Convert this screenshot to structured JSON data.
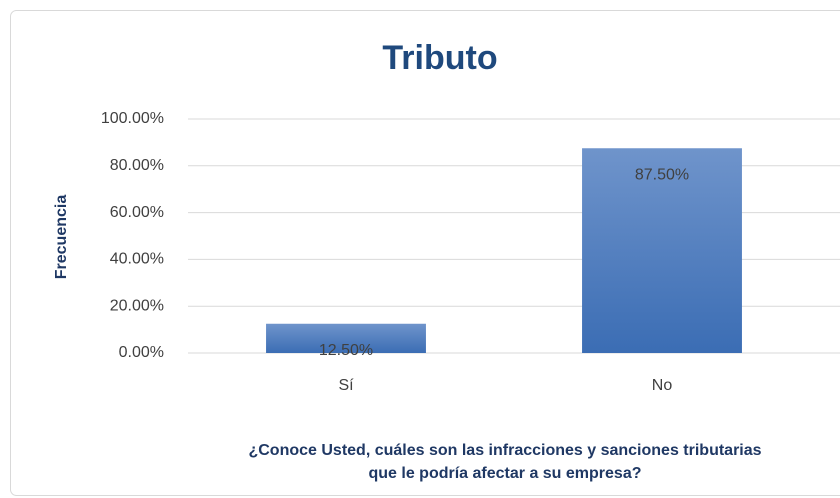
{
  "chart_data": {
    "type": "bar",
    "title": "Tributo",
    "ylabel": "Frecuencia",
    "xlabel": [
      "¿Conoce Usted, cuáles son las infracciones y sanciones tributarias",
      "que le podría afectar a su empresa?"
    ],
    "categories": [
      "Sí",
      "No"
    ],
    "values": [
      12.5,
      87.5
    ],
    "value_labels": [
      "12.50%",
      "87.50%"
    ],
    "color": "#4f7fc0",
    "ylim": [
      0,
      100
    ],
    "yticks": [
      {
        "value": 0,
        "label": "0.00%"
      },
      {
        "value": 20,
        "label": "20.00%"
      },
      {
        "value": 40,
        "label": "40.00%"
      },
      {
        "value": 60,
        "label": "60.00%"
      },
      {
        "value": 80,
        "label": "80.00%"
      },
      {
        "value": 100,
        "label": "100.00%"
      }
    ],
    "grid": true
  }
}
